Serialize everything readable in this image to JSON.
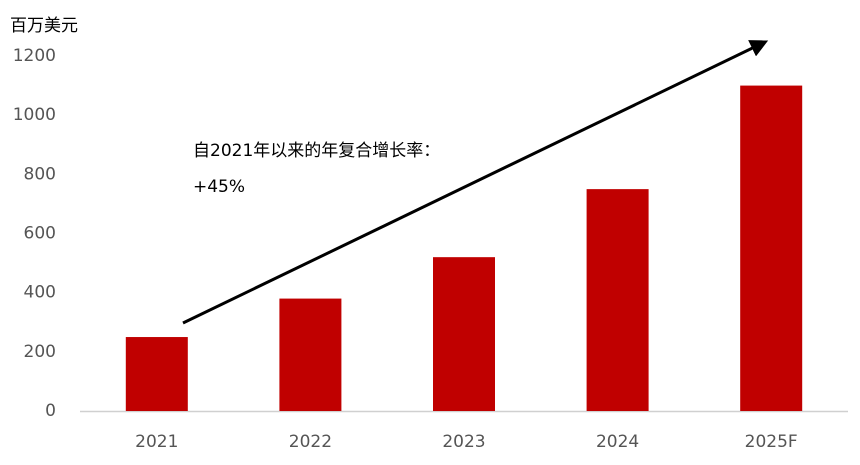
{
  "chart_data": {
    "type": "bar",
    "ylabel": "百万美元",
    "categories": [
      "2021",
      "2022",
      "2023",
      "2024",
      "2025F"
    ],
    "values": [
      250,
      380,
      520,
      750,
      1100
    ],
    "color": "#c00000",
    "ylim": [
      0,
      1200
    ],
    "yticks": [
      0,
      200,
      400,
      600,
      800,
      1000,
      1200
    ],
    "annotations": [
      "自2021年以来的年复合增长率：",
      "+45%"
    ]
  }
}
